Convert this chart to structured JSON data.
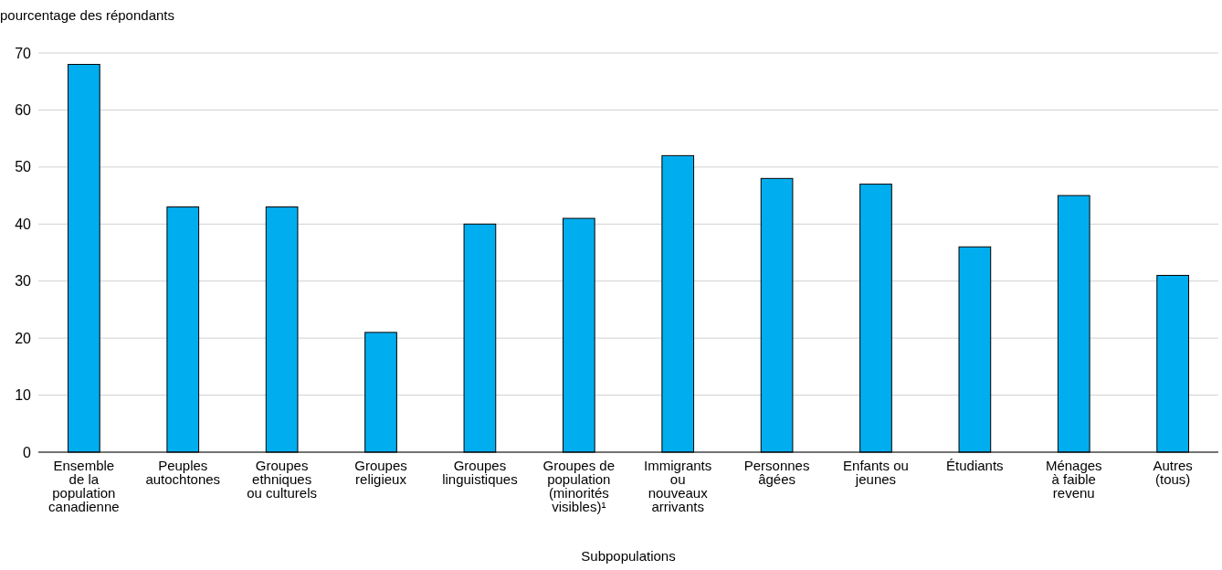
{
  "chart_data": {
    "type": "bar",
    "ylabel": "pourcentage des répondants",
    "xlabel": "Subpopulations",
    "categories": [
      "Ensemble\nde la\npopulation\ncanadienne",
      "Peuples\nautochtones",
      "Groupes\nethniques\nou culturels",
      "Groupes\nreligieux",
      "Groupes\nlinguistiques",
      "Groupes de\npopulation\n(minorités\nvisibles)¹",
      "Immigrants\nou\nnouveaux\narrivants",
      "Personnes\nâgées",
      "Enfants ou\njeunes",
      "Étudiants",
      "Ménages\nà faible\nrevenu",
      "Autres\n(tous)"
    ],
    "values": [
      68,
      43,
      43,
      21,
      40,
      41,
      52,
      48,
      47,
      36,
      45,
      31
    ],
    "color": "#00aeef",
    "ylim": [
      0,
      70
    ],
    "yticks": [
      0,
      10,
      20,
      30,
      40,
      50,
      60,
      70
    ],
    "grid": "y"
  }
}
